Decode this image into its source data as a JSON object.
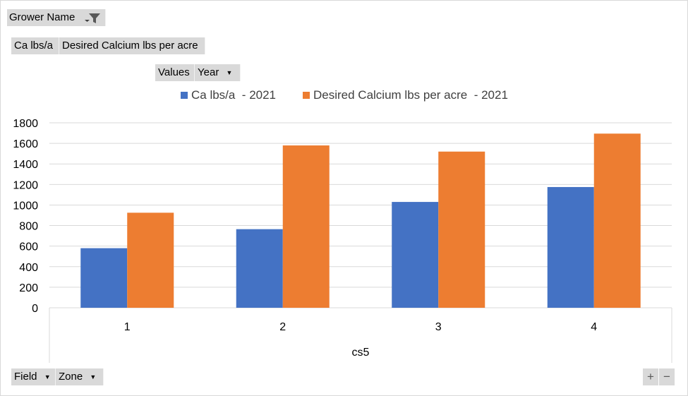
{
  "filters": {
    "grower_label": "Grower Name",
    "value_fields": [
      "Ca lbs/a",
      "Desired Calcium lbs per acre"
    ],
    "values_label": "Values",
    "year_label": "Year",
    "field_label": "Field",
    "zone_label": "Zone",
    "zoom_in": "+",
    "zoom_out": "−"
  },
  "chart_data": {
    "type": "bar",
    "categories": [
      "1",
      "2",
      "3",
      "4"
    ],
    "series": [
      {
        "name": "Ca lbs/a  - 2021",
        "values": [
          580,
          765,
          1030,
          1175
        ],
        "color": "#4472c4"
      },
      {
        "name": "Desired Calcium lbs per acre  - 2021",
        "values": [
          925,
          1580,
          1520,
          1695
        ],
        "color": "#ed7d31"
      }
    ],
    "xlabel": "cs5",
    "ylabel": "",
    "ylim": [
      0,
      1800
    ],
    "yticks": [
      0,
      200,
      400,
      600,
      800,
      1000,
      1200,
      1400,
      1600,
      1800
    ],
    "grid": true,
    "legend_position": "top"
  }
}
